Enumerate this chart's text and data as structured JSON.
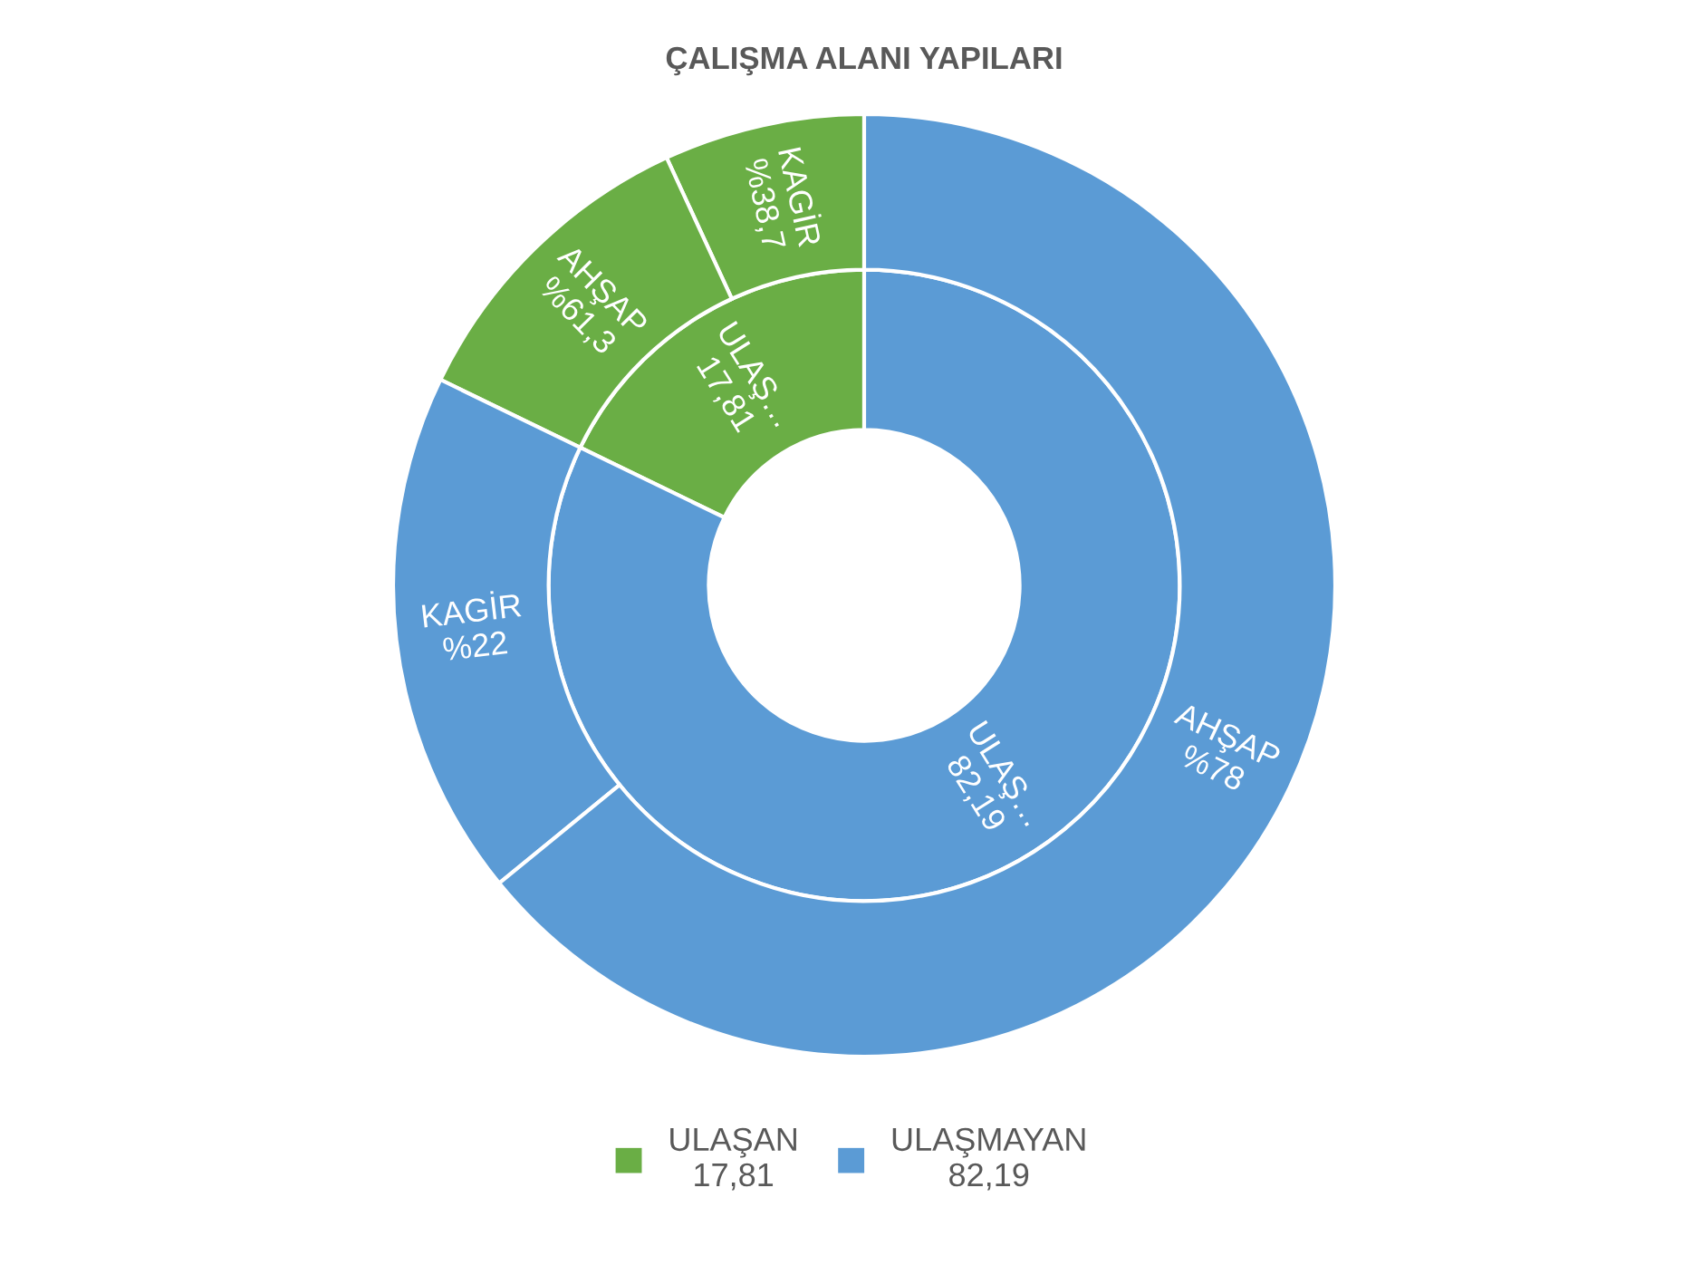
{
  "chart_data": {
    "type": "donut",
    "title": "ÇALIŞMA ALANI YAPILARI",
    "legend": "bottom",
    "categories": [
      "ULAŞAN\n17,81",
      null,
      "ULAŞMAYAN\n82,19",
      null
    ],
    "series": [
      {
        "values": [
          17.81,
          null,
          82.19,
          null
        ],
        "colors": [
          "#6aae45",
          null,
          "#5b9bd5",
          null
        ],
        "value_labels": [
          "ULAŞ…\n17,81",
          null,
          "ULAŞ…\n82,19",
          null
        ]
      },
      {
        "values": [
          6.89,
          10.92,
          18.08,
          64.11
        ],
        "colors": [
          "#6aae45",
          "#6aae45",
          "#5b9bd5",
          "#5b9bd5"
        ]
      }
    ],
    "annotations": [
      "KAGİR\n%38,7",
      "AHŞAP\n%61,3",
      "KAGİR\n%22",
      "AHŞAP\n%78"
    ]
  }
}
